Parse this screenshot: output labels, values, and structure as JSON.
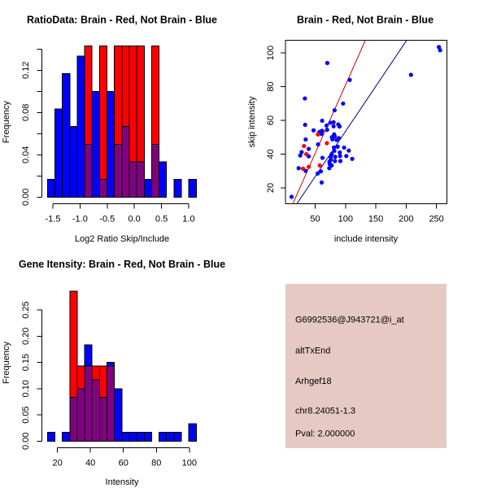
{
  "figure": {
    "background": "#FFFFFF"
  },
  "colors": {
    "blue": "#0000FF",
    "red": "#FF0000",
    "overlap": "#800080",
    "blue_line": "#00008B",
    "red_line": "#CC0000"
  },
  "chart_data": [
    {
      "id": "ratio-histogram",
      "type": "bar",
      "subtype": "overlaid-histogram",
      "title": "RatioData: Brain - Red, Not Brain - Blue",
      "xlabel": "Log2 Ratio Skip/Include",
      "ylabel": "Frequency",
      "bin_start": -1.6,
      "bin_width": 0.137,
      "bin_count": 20,
      "xlim": [
        -1.6,
        1.14
      ],
      "ylim": [
        0,
        0.1429
      ],
      "xticks": [
        -1.5,
        -1.0,
        -0.5,
        0.0,
        0.5,
        1.0
      ],
      "xtick_labels": [
        "-1.5",
        "-1.0",
        "-0.5",
        "0.0",
        "0.5",
        "1.0"
      ],
      "yticks": [
        0,
        0.02,
        0.04,
        0.06,
        0.08,
        0.1,
        0.12,
        0.14
      ],
      "ytick_labels": [
        "0.00",
        "",
        "0.04",
        "",
        "0.08",
        "",
        "0.12",
        ""
      ],
      "grid": false,
      "series": [
        {
          "name": "Not Brain",
          "color": "#0000FF",
          "values": [
            0.0167,
            0.0833,
            0.1167,
            0.0667,
            0.1333,
            0.05,
            0.1,
            0.0167,
            0.1,
            0.05,
            0.0667,
            0.0333,
            0.0333,
            0.0167,
            0.05,
            0.0333,
            0,
            0.0167,
            0,
            0.0167
          ]
        },
        {
          "name": "Brain",
          "color": "#FF0000",
          "values": [
            0,
            0,
            0,
            0,
            0,
            0.1429,
            0,
            0.1429,
            0,
            0.1429,
            0.1429,
            0.1429,
            0.1429,
            0,
            0.1429,
            0,
            0,
            0,
            0,
            0
          ]
        }
      ],
      "overlap_color": "#800080"
    },
    {
      "id": "intensity-scatter",
      "type": "scatter",
      "title": "Brain - Red, Not Brain - Blue",
      "xlabel": "include intensity",
      "ylabel": "skip intensity",
      "xlim": [
        1,
        267
      ],
      "ylim": [
        10.5,
        107.6
      ],
      "xticks": [
        50,
        100,
        150,
        200,
        250
      ],
      "xtick_labels": [
        "50",
        "100",
        "150",
        "200",
        "250"
      ],
      "yticks": [
        20,
        40,
        60,
        80,
        100
      ],
      "ytick_labels": [
        "20",
        "40",
        "60",
        "80",
        "100"
      ],
      "grid": false,
      "series": [
        {
          "name": "Not Brain",
          "color": "#0000FF",
          "points": [
            [
              11,
              14.7
            ],
            [
              22.7,
              31.7
            ],
            [
              34.3,
              30.1
            ],
            [
              54,
              28.5
            ],
            [
              59.4,
              29.8
            ],
            [
              60.7,
              23.2
            ],
            [
              73.2,
              31.7
            ],
            [
              62,
              37.8
            ],
            [
              74,
              34.1
            ],
            [
              77.2,
              33.3
            ],
            [
              75.9,
              36.8
            ],
            [
              82.6,
              35.9
            ],
            [
              91.5,
              35.9
            ],
            [
              73.6,
              35.5
            ],
            [
              75.5,
              38.4
            ],
            [
              83,
              38.4
            ],
            [
              91,
              38.9
            ],
            [
              101.3,
              38.9
            ],
            [
              111.1,
              37.2
            ],
            [
              77.2,
              40
            ],
            [
              90.6,
              41
            ],
            [
              81.6,
              42
            ],
            [
              105.4,
              42.1
            ],
            [
              97.7,
              43.9
            ],
            [
              87,
              44.4
            ],
            [
              80.8,
              43.9
            ],
            [
              39.3,
              43.1
            ],
            [
              27.6,
              41.2
            ],
            [
              25.3,
              39.2
            ],
            [
              39.3,
              38.7
            ],
            [
              34.3,
              48.7
            ],
            [
              54.8,
              45.8
            ],
            [
              78.5,
              48.8
            ],
            [
              85.3,
              48.4
            ],
            [
              88.9,
              49.5
            ],
            [
              82.2,
              50.6
            ],
            [
              77.6,
              50
            ],
            [
              81.2,
              51.7
            ],
            [
              60.2,
              52
            ],
            [
              69.6,
              54.4
            ],
            [
              61.5,
              53.8
            ],
            [
              58.4,
              53.3
            ],
            [
              56.7,
              53
            ],
            [
              47.3,
              54.1
            ],
            [
              80.3,
              56.5
            ],
            [
              90.2,
              56.4
            ],
            [
              88,
              57.6
            ],
            [
              75,
              58.6
            ],
            [
              68.8,
              57
            ],
            [
              33.4,
              57.4
            ],
            [
              61.5,
              59.8
            ],
            [
              80.3,
              58.9
            ],
            [
              82,
              66
            ],
            [
              96,
              70
            ],
            [
              33,
              73
            ],
            [
              107,
              84
            ],
            [
              70,
              94
            ],
            [
              208,
              87
            ],
            [
              254,
              103.5
            ],
            [
              256,
              101.6
            ]
          ]
        },
        {
          "name": "Brain",
          "color": "#FF0000",
          "points": [
            [
              54.5,
              51.7
            ],
            [
              69.2,
              46.5
            ],
            [
              31.5,
              44.8
            ],
            [
              35.3,
              40
            ],
            [
              57.5,
              33.3
            ],
            [
              29.9,
              31.4
            ],
            [
              39.4,
              32.5
            ]
          ]
        }
      ],
      "fit_lines": [
        {
          "name": "Brain",
          "color": "#CC0000",
          "slope": 0.81,
          "intercept": 0
        },
        {
          "name": "Not Brain",
          "color": "#00008B",
          "slope": 0.535,
          "intercept": 0
        }
      ]
    },
    {
      "id": "gene-histogram",
      "type": "bar",
      "subtype": "overlaid-histogram",
      "title": "Gene Itensity: Brain - Red, Not Brain - Blue",
      "xlabel": "Intensity",
      "ylabel": "Frequency",
      "bin_start": 13.9,
      "bin_width": 4.515,
      "bin_count": 20,
      "xlim": [
        13.9,
        104.2
      ],
      "ylim": [
        0,
        0.2857
      ],
      "xticks": [
        20,
        40,
        60,
        80,
        100
      ],
      "xtick_labels": [
        "20",
        "40",
        "60",
        "80",
        "100"
      ],
      "yticks": [
        0,
        0.05,
        0.1,
        0.15,
        0.2,
        0.25
      ],
      "ytick_labels": [
        "0.00",
        "0.05",
        "0.10",
        "0.15",
        "0.20",
        "0.25"
      ],
      "grid": false,
      "series": [
        {
          "name": "Not Brain",
          "color": "#0000FF",
          "values": [
            0.0167,
            0,
            0.0167,
            0.0833,
            0.1,
            0.1833,
            0.1167,
            0.0833,
            0.15,
            0.1,
            0.0167,
            0.0167,
            0.0167,
            0.0167,
            0,
            0.0167,
            0.0167,
            0.0167,
            0,
            0.0333
          ]
        },
        {
          "name": "Brain",
          "color": "#FF0000",
          "values": [
            0,
            0,
            0,
            0.2857,
            0.1429,
            0.1429,
            0.1429,
            0.1429,
            0.1429,
            0,
            0,
            0,
            0,
            0,
            0,
            0,
            0,
            0,
            0,
            0
          ]
        }
      ],
      "overlap_color": "#800080"
    }
  ],
  "info_panel": {
    "background": "#E6C9C3",
    "probe_id": "G6992536@J943721@i_at",
    "event_type": "altTxEnd",
    "gene": "Arhgef18",
    "location": "chr8.24051-1.3",
    "pval_text": "Pval: 2.000000",
    "pval_color": "#9B0A14"
  }
}
